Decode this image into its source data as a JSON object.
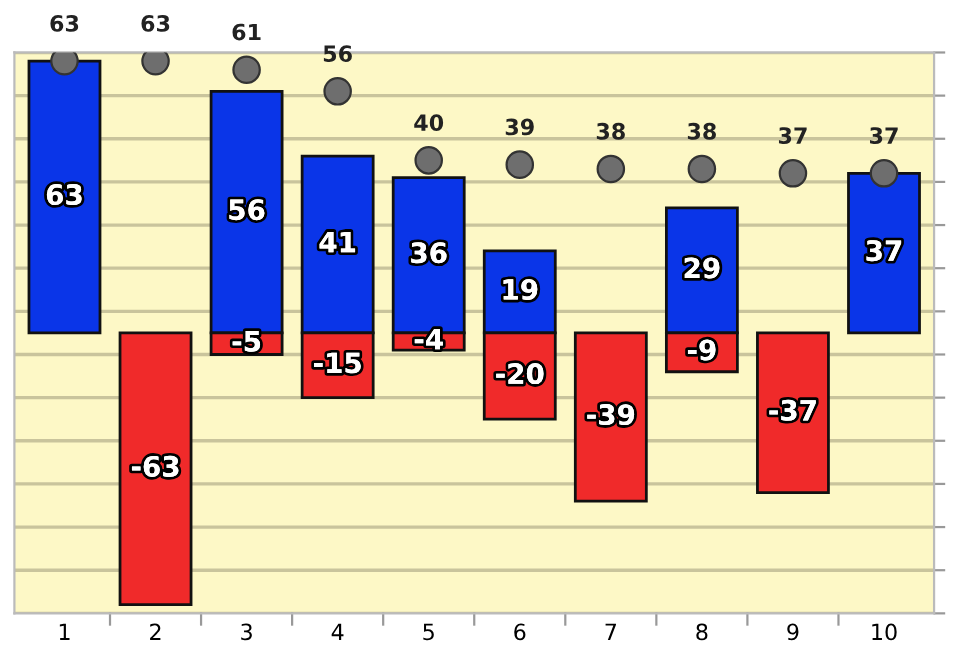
{
  "chart_data": {
    "type": "bar",
    "categories": [
      "1",
      "2",
      "3",
      "4",
      "5",
      "6",
      "7",
      "8",
      "9",
      "10"
    ],
    "series": [
      {
        "color": "#0a35e8",
        "values": [
          63,
          null,
          56,
          41,
          36,
          19,
          null,
          29,
          null,
          37
        ]
      },
      {
        "color": "#f02a2a",
        "values": [
          null,
          -63,
          -5,
          -15,
          -4,
          -20,
          -39,
          -9,
          -37,
          null
        ]
      },
      {
        "type": "scatter",
        "color": "#6e6e6e",
        "values": [
          63,
          63,
          61,
          56,
          40,
          39,
          38,
          38,
          37,
          37
        ]
      }
    ],
    "ylim": [
      -65,
      65
    ],
    "yticks": [
      {
        "value": -65,
        "label": null
      },
      {
        "value": -55,
        "label": null
      },
      {
        "value": -45,
        "label": null
      },
      {
        "value": -35,
        "label": null
      },
      {
        "value": -25,
        "label": null
      },
      {
        "value": -15,
        "label": null
      },
      {
        "value": -5,
        "label": null
      },
      {
        "value": 5,
        "label": null
      },
      {
        "value": 15,
        "label": null
      },
      {
        "value": 25,
        "label": null
      },
      {
        "value": 35,
        "label": null
      },
      {
        "value": 45,
        "label": null
      },
      {
        "value": 55,
        "label": null
      },
      {
        "value": 65,
        "label": null
      }
    ],
    "stacked": true,
    "grid": "y",
    "marker": "circle",
    "data_labels": true,
    "tick_labels": "x"
  }
}
